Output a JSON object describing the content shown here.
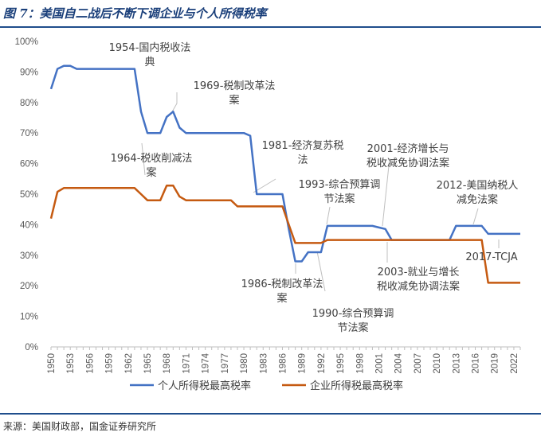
{
  "header": {
    "title": "图 7：美国自二战后不断下调企业与个人所得税率"
  },
  "footer": {
    "source": "来源：美国财政部，国金证券研究所"
  },
  "colors": {
    "individual": "#4472C4",
    "corporate": "#C55A11",
    "accent": "#1f4e8c"
  },
  "chart_data": {
    "type": "line",
    "title": "",
    "xlabel": "",
    "ylabel": "",
    "ylim": [
      0,
      100
    ],
    "y_ticks": [
      "0%",
      "10%",
      "20%",
      "30%",
      "40%",
      "50%",
      "60%",
      "70%",
      "80%",
      "90%",
      "100%"
    ],
    "x_ticks": [
      "1950",
      "1953",
      "1956",
      "1959",
      "1962",
      "1965",
      "1968",
      "1971",
      "1974",
      "1977",
      "1980",
      "1983",
      "1986",
      "1989",
      "1992",
      "1995",
      "1998",
      "2001",
      "2004",
      "2007",
      "2010",
      "2013",
      "2016",
      "2019",
      "2022"
    ],
    "x_tick_values": [
      1950,
      1953,
      1956,
      1959,
      1962,
      1965,
      1968,
      1971,
      1974,
      1977,
      1980,
      1983,
      1986,
      1989,
      1992,
      1995,
      1998,
      2001,
      2004,
      2007,
      2010,
      2013,
      2016,
      2019,
      2022
    ],
    "xlim": [
      1950,
      2023
    ],
    "grid": false,
    "legend_position": "bottom",
    "series": [
      {
        "name": "个人所得税最高税率",
        "x": [
          1950,
          1951,
          1952,
          1953,
          1954,
          1955,
          1956,
          1957,
          1958,
          1959,
          1960,
          1961,
          1962,
          1963,
          1964,
          1965,
          1966,
          1967,
          1968,
          1969,
          1970,
          1971,
          1972,
          1973,
          1974,
          1975,
          1976,
          1977,
          1978,
          1979,
          1980,
          1981,
          1982,
          1983,
          1984,
          1985,
          1986,
          1987,
          1988,
          1989,
          1990,
          1991,
          1992,
          1993,
          1994,
          1995,
          1996,
          1997,
          1998,
          1999,
          2000,
          2001,
          2002,
          2003,
          2004,
          2005,
          2006,
          2007,
          2008,
          2009,
          2010,
          2011,
          2012,
          2013,
          2014,
          2015,
          2016,
          2017,
          2018,
          2019,
          2020,
          2021,
          2022,
          2023
        ],
        "values": [
          84.4,
          91,
          92,
          92,
          91,
          91,
          91,
          91,
          91,
          91,
          91,
          91,
          91,
          91,
          77,
          70,
          70,
          70,
          75.25,
          77,
          71.75,
          70,
          70,
          70,
          70,
          70,
          70,
          70,
          70,
          70,
          70,
          69.125,
          50,
          50,
          50,
          50,
          50,
          38.5,
          28,
          28,
          31,
          31,
          31,
          39.6,
          39.6,
          39.6,
          39.6,
          39.6,
          39.6,
          39.6,
          39.6,
          39.1,
          38.6,
          35,
          35,
          35,
          35,
          35,
          35,
          35,
          35,
          35,
          35,
          39.6,
          39.6,
          39.6,
          39.6,
          39.6,
          37,
          37,
          37,
          37,
          37,
          37
        ]
      },
      {
        "name": "企业所得税最高税率",
        "x": [
          1950,
          1951,
          1952,
          1953,
          1954,
          1955,
          1956,
          1957,
          1958,
          1959,
          1960,
          1961,
          1962,
          1963,
          1964,
          1965,
          1966,
          1967,
          1968,
          1969,
          1970,
          1971,
          1972,
          1973,
          1974,
          1975,
          1976,
          1977,
          1978,
          1979,
          1980,
          1981,
          1982,
          1983,
          1984,
          1985,
          1986,
          1987,
          1988,
          1989,
          1990,
          1991,
          1992,
          1993,
          1994,
          1995,
          1996,
          1997,
          1998,
          1999,
          2000,
          2001,
          2002,
          2003,
          2004,
          2005,
          2006,
          2007,
          2008,
          2009,
          2010,
          2011,
          2012,
          2013,
          2014,
          2015,
          2016,
          2017,
          2018,
          2019,
          2020,
          2021,
          2022,
          2023
        ],
        "values": [
          42,
          50.75,
          52,
          52,
          52,
          52,
          52,
          52,
          52,
          52,
          52,
          52,
          52,
          52,
          50,
          48,
          48,
          48,
          52.8,
          52.8,
          49.2,
          48,
          48,
          48,
          48,
          48,
          48,
          48,
          48,
          46,
          46,
          46,
          46,
          46,
          46,
          46,
          46,
          40,
          34,
          34,
          34,
          34,
          34,
          35,
          35,
          35,
          35,
          35,
          35,
          35,
          35,
          35,
          35,
          35,
          35,
          35,
          35,
          35,
          35,
          35,
          35,
          35,
          35,
          35,
          35,
          35,
          35,
          35,
          21,
          21,
          21,
          21,
          21,
          21
        ]
      }
    ],
    "annotations": [
      {
        "lines": [
          "1954-国内税收法",
          "典"
        ]
      },
      {
        "lines": [
          "1969-税制改革法",
          "案"
        ]
      },
      {
        "lines": [
          "1964-税收削减法",
          "案"
        ]
      },
      {
        "lines": [
          "1981-经济复苏税",
          "法"
        ]
      },
      {
        "lines": [
          "1993-综合预算调",
          "节法案"
        ]
      },
      {
        "lines": [
          "2001-经济增长与",
          "税收减免协调法案"
        ]
      },
      {
        "lines": [
          "2012-美国纳税人",
          "减免法案"
        ]
      },
      {
        "lines": [
          "2017-TCJA"
        ]
      },
      {
        "lines": [
          "2003-就业与增长",
          "税收减免协调法案"
        ]
      },
      {
        "lines": [
          "1986-税制改革法",
          "案"
        ]
      },
      {
        "lines": [
          "1990-综合预算调",
          "节法案"
        ]
      }
    ]
  }
}
